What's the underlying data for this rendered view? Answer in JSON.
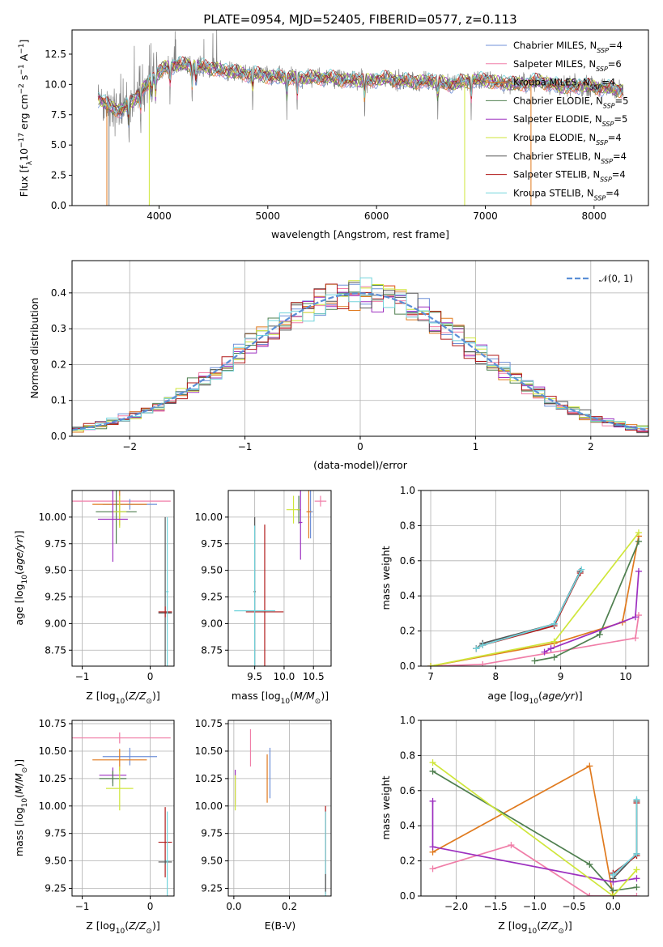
{
  "colors": {
    "miles_chabrier": "#6f90d8",
    "miles_salpeter": "#f07ea8",
    "miles_kroupa": "#e07a1e",
    "elodie_chabrier": "#4f7f4f",
    "elodie_salpeter": "#9d30c0",
    "elodie_kroupa": "#cfe63a",
    "stelib_chabrier": "#555555",
    "stelib_salpeter": "#b01818",
    "stelib_kroupa": "#72d4dc",
    "gaussian": "#5b8fd6",
    "data": "#808080"
  },
  "chart_data": [
    {
      "type": "line",
      "title": "PLATE=0954, MJD=52405, FIBERID=0577, z=0.113",
      "xlabel": "wavelength [Angstrom, rest frame]",
      "ylabel": "Flux [f_λ10^-17 erg cm^-2 s^-1 A^-1]",
      "xlim": [
        3200,
        8500
      ],
      "ylim": [
        0,
        14.5
      ],
      "xticks": [
        "4000",
        "5000",
        "6000",
        "7000",
        "8000"
      ],
      "yticks": [
        "0.0",
        "2.5",
        "5.0",
        "7.5",
        "10.0",
        "12.5"
      ],
      "grid": false,
      "legend_position": "upper right",
      "continuum": {
        "x": [
          3450,
          3550,
          3650,
          3750,
          3850,
          3950,
          4050,
          4150,
          4300,
          4500,
          4700,
          4900,
          5100,
          5300,
          5500,
          5700,
          5900,
          6100,
          6300,
          6500,
          6700,
          6900,
          7100,
          7300,
          7500,
          7700,
          7900,
          8100,
          8270
        ],
        "y": [
          8.8,
          8.1,
          7.9,
          8.5,
          9.6,
          10.5,
          11.4,
          11.6,
          11.6,
          11.3,
          11.0,
          10.8,
          10.6,
          10.5,
          10.6,
          10.4,
          10.3,
          10.5,
          10.2,
          10.3,
          10.0,
          10.4,
          10.2,
          10.0,
          10.3,
          9.8,
          9.9,
          9.7,
          9.5
        ]
      },
      "series": [
        {
          "name": "Chabrier MILES, N_SSP=4"
        },
        {
          "name": "Salpeter MILES, N_SSP=6"
        },
        {
          "name": "Kroupa MILES, N_SSP=4"
        },
        {
          "name": "Chabrier ELODIE, N_SSP=5"
        },
        {
          "name": "Salpeter ELODIE, N_SSP=5"
        },
        {
          "name": "Kroupa ELODIE, N_SSP=4"
        },
        {
          "name": "Chabrier STELIB, N_SSP=4"
        },
        {
          "name": "Salpeter STELIB, N_SSP=4"
        },
        {
          "name": "Kroupa STELIB, N_SSP=4"
        }
      ],
      "drops": [
        3520,
        3540,
        3910,
        6810,
        7420
      ]
    },
    {
      "type": "bar",
      "xlabel": "(data-model)/error",
      "ylabel": "Normed distribution",
      "xlim": [
        -2.5,
        2.5
      ],
      "ylim": [
        0,
        0.49
      ],
      "xticks": [
        "−2",
        "−1",
        "0",
        "1",
        "2"
      ],
      "yticks": [
        "0.0",
        "0.1",
        "0.2",
        "0.3",
        "0.4"
      ],
      "grid": true,
      "legend_position": "upper right",
      "legend": "𝒩(0, 1)",
      "bin_width": 0.1
    },
    {
      "type": "scatter",
      "xlabel": "Z [log10(Z/Z⊙)]",
      "ylabel": "age  [log10(age/yr)]",
      "xlim": [
        -1.15,
        0.35
      ],
      "ylim": [
        8.6,
        10.25
      ],
      "xticks": [
        "−1",
        "0"
      ],
      "yticks": [
        "8.75",
        "9.00",
        "9.25",
        "9.50",
        "9.75",
        "10.00"
      ],
      "grid": true,
      "points": [
        {
          "x": -0.45,
          "y": 10.15,
          "xerr": 0.75,
          "yerr": 0.05,
          "model": "miles_salpeter"
        },
        {
          "x": -0.3,
          "y": 10.12,
          "xerr": 0.4,
          "yerr": 0.05,
          "model": "miles_chabrier"
        },
        {
          "x": -0.45,
          "y": 10.12,
          "xerr": 0.4,
          "yerr": 0.2,
          "model": "miles_kroupa"
        },
        {
          "x": -0.5,
          "y": 10.05,
          "xerr": 0.3,
          "yerr": 0.3,
          "model": "elodie_chabrier"
        },
        {
          "x": -0.45,
          "y": 10.05,
          "xerr": 0.1,
          "yerr": 0.15,
          "model": "elodie_kroupa"
        },
        {
          "x": -0.55,
          "y": 9.98,
          "xerr": 0.22,
          "yerr": 0.4,
          "model": "elodie_salpeter"
        },
        {
          "x": 0.22,
          "y": 9.1,
          "xerr": 0.1,
          "yerr": 0.9,
          "model": "stelib_chabrier"
        },
        {
          "x": 0.22,
          "y": 9.11,
          "xerr": 0.1,
          "yerr": 0.05,
          "model": "stelib_salpeter"
        },
        {
          "x": 0.25,
          "y": 9.3,
          "xerr": 0.02,
          "yerr": 0.7,
          "model": "stelib_kroupa"
        }
      ]
    },
    {
      "type": "scatter",
      "xlabel": "mass [log10(M/M⊙)]",
      "ylabel": "",
      "xlim": [
        9.05,
        10.8
      ],
      "ylim": [
        8.6,
        10.25
      ],
      "xticks": [
        "9.5",
        "10.0",
        "10.5"
      ],
      "yticks": [
        "8.75",
        "9.00",
        "9.25",
        "9.50",
        "9.75",
        "10.00"
      ],
      "grid": true,
      "points": [
        {
          "x": 10.62,
          "y": 10.15,
          "xerr": 0.1,
          "yerr": 0.05,
          "model": "miles_salpeter"
        },
        {
          "x": 10.45,
          "y": 10.05,
          "xerr": 0.04,
          "yerr": 0.25,
          "model": "miles_chabrier"
        },
        {
          "x": 10.42,
          "y": 10.05,
          "xerr": 0.04,
          "yerr": 0.25,
          "model": "miles_kroupa"
        },
        {
          "x": 10.25,
          "y": 10.07,
          "xerr": 0.03,
          "yerr": 0.13,
          "model": "elodie_chabrier"
        },
        {
          "x": 10.16,
          "y": 10.07,
          "xerr": 0.12,
          "yerr": 0.13,
          "model": "elodie_kroupa"
        },
        {
          "x": 10.28,
          "y": 9.95,
          "xerr": 0.03,
          "yerr": 0.35,
          "model": "elodie_salpeter"
        },
        {
          "x": 9.5,
          "y": 9.3,
          "xerr": 0.02,
          "yerr": 0.7,
          "model": "stelib_chabrier"
        },
        {
          "x": 9.67,
          "y": 9.11,
          "xerr": 0.32,
          "yerr": 0.82,
          "model": "stelib_salpeter"
        },
        {
          "x": 9.5,
          "y": 9.12,
          "xerr": 0.35,
          "yerr": 0.8,
          "model": "stelib_kroupa"
        }
      ]
    },
    {
      "type": "line",
      "xlabel": "age  [log10(age/yr)]",
      "ylabel": "mass weight",
      "xlim": [
        6.85,
        10.35
      ],
      "ylim": [
        0,
        1
      ],
      "xticks": [
        "7",
        "8",
        "9",
        "10"
      ],
      "yticks": [
        "0.0",
        "0.2",
        "0.4",
        "0.6",
        "0.8",
        "1.0"
      ],
      "grid": true,
      "series": [
        {
          "model": "miles_chabrier",
          "x": [
            7.7,
            7.8,
            8.9,
            9.3
          ],
          "y": [
            0.1,
            0.12,
            0.24,
            0.54
          ]
        },
        {
          "model": "miles_salpeter",
          "x": [
            7.0,
            7.8,
            10.15,
            10.2
          ],
          "y": [
            0.0,
            0.01,
            0.16,
            0.29
          ]
        },
        {
          "model": "miles_kroupa",
          "x": [
            7.0,
            8.9,
            9.95,
            10.2
          ],
          "y": [
            0.0,
            0.13,
            0.25,
            0.74
          ]
        },
        {
          "model": "elodie_chabrier",
          "x": [
            8.6,
            8.9,
            9.6,
            10.2
          ],
          "y": [
            0.03,
            0.05,
            0.18,
            0.71
          ]
        },
        {
          "model": "elodie_salpeter",
          "x": [
            8.75,
            8.85,
            10.15,
            10.2
          ],
          "y": [
            0.08,
            0.1,
            0.28,
            0.54
          ]
        },
        {
          "model": "elodie_kroupa",
          "x": [
            7.0,
            8.9,
            10.2
          ],
          "y": [
            0.0,
            0.14,
            0.76
          ]
        },
        {
          "model": "stelib_chabrier",
          "x": [
            7.7,
            7.8,
            8.9,
            9.3
          ],
          "y": [
            0.1,
            0.13,
            0.24,
            0.54
          ]
        },
        {
          "model": "stelib_salpeter",
          "x": [
            7.7,
            7.8,
            8.9,
            9.3
          ],
          "y": [
            0.1,
            0.12,
            0.23,
            0.53
          ]
        },
        {
          "model": "stelib_kroupa",
          "x": [
            7.7,
            7.8,
            8.9,
            9.32
          ],
          "y": [
            0.1,
            0.12,
            0.24,
            0.55
          ]
        }
      ]
    },
    {
      "type": "scatter",
      "xlabel": "Z [log10(Z/Z⊙)]",
      "ylabel": "mass [log10(M/M⊙)]",
      "xlim": [
        -1.15,
        0.35
      ],
      "ylim": [
        9.18,
        10.78
      ],
      "xticks": [
        "−1",
        "0"
      ],
      "yticks": [
        "9.25",
        "9.50",
        "9.75",
        "10.00",
        "10.25",
        "10.50",
        "10.75"
      ],
      "grid": true,
      "points": [
        {
          "x": -0.45,
          "y": 10.62,
          "xerr": 0.75,
          "yerr": 0.05,
          "model": "miles_salpeter"
        },
        {
          "x": -0.3,
          "y": 10.45,
          "xerr": 0.4,
          "yerr": 0.08,
          "model": "miles_chabrier"
        },
        {
          "x": -0.45,
          "y": 10.42,
          "xerr": 0.4,
          "yerr": 0.1,
          "model": "miles_kroupa"
        },
        {
          "x": -0.55,
          "y": 10.28,
          "xerr": 0.2,
          "yerr": 0.07,
          "model": "elodie_salpeter"
        },
        {
          "x": -0.55,
          "y": 10.25,
          "xerr": 0.2,
          "yerr": 0.07,
          "model": "elodie_chabrier"
        },
        {
          "x": -0.45,
          "y": 10.16,
          "xerr": 0.2,
          "yerr": 0.2,
          "model": "elodie_kroupa"
        },
        {
          "x": 0.22,
          "y": 9.67,
          "xerr": 0.1,
          "yerr": 0.32,
          "model": "stelib_salpeter"
        },
        {
          "x": 0.22,
          "y": 9.49,
          "xerr": 0.1,
          "yerr": 0.02,
          "model": "stelib_chabrier"
        },
        {
          "x": 0.25,
          "y": 9.5,
          "xerr": 0.02,
          "yerr": 0.45,
          "model": "stelib_kroupa"
        }
      ]
    },
    {
      "type": "scatter",
      "xlabel": "E(B-V)",
      "ylabel": "",
      "xlim": [
        -0.02,
        0.35
      ],
      "ylim": [
        9.18,
        10.78
      ],
      "xticks": [
        "0.0",
        "0.2"
      ],
      "yticks": [
        "9.25",
        "9.50",
        "9.75",
        "10.00",
        "10.25",
        "10.50",
        "10.75"
      ],
      "grid": true,
      "points": [
        {
          "x": 0.06,
          "y": 10.53,
          "xerr": 0,
          "yerr": 0.17,
          "model": "miles_salpeter"
        },
        {
          "x": 0.13,
          "y": 10.3,
          "xerr": 0,
          "yerr": 0.23,
          "model": "miles_chabrier"
        },
        {
          "x": 0.12,
          "y": 10.25,
          "xerr": 0,
          "yerr": 0.22,
          "model": "miles_kroupa"
        },
        {
          "x": 0.005,
          "y": 10.17,
          "xerr": 0,
          "yerr": 0.16,
          "model": "elodie_salpeter"
        },
        {
          "x": 0.005,
          "y": 10.12,
          "xerr": 0,
          "yerr": 0.16,
          "model": "elodie_kroupa"
        },
        {
          "x": 0.33,
          "y": 9.6,
          "xerr": 0,
          "yerr": 0.4,
          "model": "stelib_salpeter"
        },
        {
          "x": 0.33,
          "y": 9.5,
          "xerr": 0,
          "yerr": 0.45,
          "model": "stelib_kroupa"
        },
        {
          "x": 0.33,
          "y": 9.3,
          "xerr": 0,
          "yerr": 0.08,
          "model": "stelib_chabrier"
        }
      ]
    },
    {
      "type": "line",
      "xlabel": "Z [log10(Z/Z⊙)]",
      "ylabel": "mass weight",
      "xlim": [
        -2.45,
        0.45
      ],
      "ylim": [
        0,
        1
      ],
      "xticks": [
        "−2.0",
        "−1.5",
        "−1.0",
        "−0.5",
        "0.0"
      ],
      "yticks": [
        "0.0",
        "0.2",
        "0.4",
        "0.6",
        "0.8",
        "1.0"
      ],
      "grid": true,
      "series": [
        {
          "model": "miles_chabrier",
          "x": [
            0.0,
            0.3,
            0.3
          ],
          "y": [
            0.12,
            0.24,
            0.54
          ]
        },
        {
          "model": "miles_salpeter",
          "x": [
            -2.3,
            -1.3,
            -0.3,
            0.0,
            0.3
          ],
          "y": [
            0.155,
            0.29,
            0.0,
            0.0,
            0.0
          ]
        },
        {
          "model": "miles_kroupa",
          "x": [
            -2.3,
            -0.3,
            0.0
          ],
          "y": [
            0.25,
            0.74,
            0.0
          ]
        },
        {
          "model": "elodie_chabrier",
          "x": [
            -2.3,
            -0.3,
            0.0,
            0.3
          ],
          "y": [
            0.71,
            0.18,
            0.03,
            0.05
          ]
        },
        {
          "model": "elodie_salpeter",
          "x": [
            -2.3,
            -2.3,
            0.0,
            0.3
          ],
          "y": [
            0.54,
            0.28,
            0.08,
            0.1
          ]
        },
        {
          "model": "elodie_kroupa",
          "x": [
            -2.3,
            0.0,
            0.3
          ],
          "y": [
            0.76,
            0.0,
            0.15
          ]
        },
        {
          "model": "stelib_chabrier",
          "x": [
            0.0,
            0.3,
            0.3
          ],
          "y": [
            0.1,
            0.24,
            0.54
          ]
        },
        {
          "model": "stelib_salpeter",
          "x": [
            0.0,
            0.3,
            0.3
          ],
          "y": [
            0.13,
            0.23,
            0.53
          ]
        },
        {
          "model": "stelib_kroupa",
          "x": [
            0.0,
            0.3,
            0.3
          ],
          "y": [
            0.12,
            0.24,
            0.55
          ]
        }
      ]
    }
  ]
}
